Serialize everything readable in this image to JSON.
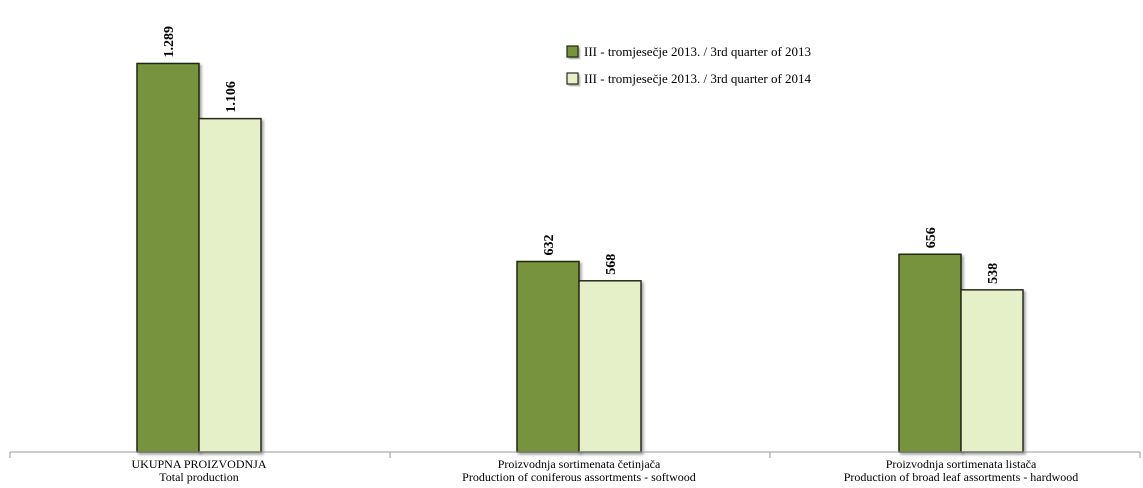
{
  "chart_data": {
    "type": "bar",
    "categories": [
      [
        "UKUPNA PROIZVODNJA",
        "Total production"
      ],
      [
        "Proizvodnja sortimenata četinjača",
        "Production of coniferous assortments - softwood"
      ],
      [
        "Proizvodnja sortimenata listača",
        "Production of broad leaf assortments - hardwood"
      ]
    ],
    "series": [
      {
        "name": "III - tromjesečje 2013. / 3rd quarter of 2013",
        "values": [
          1289,
          632,
          656
        ],
        "value_labels": [
          "1.289",
          "632",
          "656"
        ],
        "color": "#77933c"
      },
      {
        "name": "III - tromjesečje 2013. / 3rd quarter of 2014",
        "values": [
          1106,
          568,
          538
        ],
        "value_labels": [
          "1.106",
          "568",
          "538"
        ],
        "color": "#e6f0c8"
      }
    ],
    "title": "",
    "xlabel": "",
    "ylabel": "",
    "ylim": [
      0,
      1400
    ],
    "grid": false,
    "legend_position": "top-center",
    "data_labels_rotated": true
  }
}
